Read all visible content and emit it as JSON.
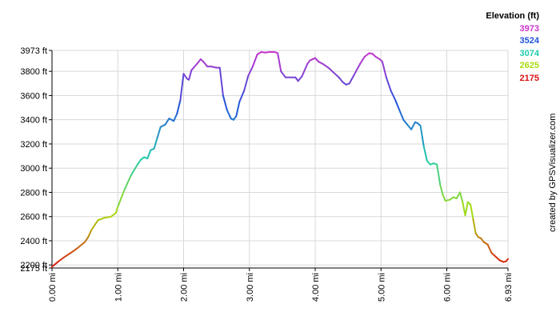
{
  "chart_data": {
    "type": "line",
    "xlabel": "",
    "ylabel": "",
    "xlim": [
      0,
      6.93
    ],
    "ylim": [
      2175,
      3973
    ],
    "x_ticks": [
      {
        "value": 0,
        "label": "0.00 mi"
      },
      {
        "value": 1,
        "label": "1.00 mi"
      },
      {
        "value": 2,
        "label": "2.00 mi"
      },
      {
        "value": 3,
        "label": "3.00 mi"
      },
      {
        "value": 4,
        "label": "4.00 mi"
      },
      {
        "value": 5,
        "label": "5.00 mi"
      },
      {
        "value": 6,
        "label": "6.00 mi"
      },
      {
        "value": 6.93,
        "label": "6.93 mi"
      }
    ],
    "y_ticks": [
      {
        "value": 2175,
        "label": "2175 ft"
      },
      {
        "value": 2200,
        "label": "2200 ft"
      },
      {
        "value": 2400,
        "label": "2400 ft"
      },
      {
        "value": 2600,
        "label": "2600 ft"
      },
      {
        "value": 2800,
        "label": "2800 ft"
      },
      {
        "value": 3000,
        "label": "3000 ft"
      },
      {
        "value": 3200,
        "label": "3200 ft"
      },
      {
        "value": 3400,
        "label": "3400 ft"
      },
      {
        "value": 3600,
        "label": "3600 ft"
      },
      {
        "value": 3800,
        "label": "3800 ft"
      },
      {
        "value": 3973,
        "label": "3973 ft"
      }
    ],
    "grid": true,
    "legend": {
      "title": "Elevation (ft)",
      "placement": "top-right",
      "entries": [
        {
          "label": "3973",
          "color": "#cc33cc"
        },
        {
          "label": "3524",
          "color": "#2255dd"
        },
        {
          "label": "3074",
          "color": "#22ccaa"
        },
        {
          "label": "2625",
          "color": "#aadd11"
        },
        {
          "label": "2175",
          "color": "#dd1111"
        }
      ]
    },
    "series": [
      {
        "points": [
          [
            0.0,
            2185
          ],
          [
            0.1,
            2230
          ],
          [
            0.2,
            2270
          ],
          [
            0.3,
            2305
          ],
          [
            0.4,
            2345
          ],
          [
            0.5,
            2390
          ],
          [
            0.55,
            2430
          ],
          [
            0.6,
            2490
          ],
          [
            0.7,
            2570
          ],
          [
            0.8,
            2590
          ],
          [
            0.9,
            2600
          ],
          [
            0.97,
            2630
          ],
          [
            1.0,
            2680
          ],
          [
            1.1,
            2820
          ],
          [
            1.2,
            2940
          ],
          [
            1.3,
            3030
          ],
          [
            1.35,
            3070
          ],
          [
            1.4,
            3090
          ],
          [
            1.45,
            3080
          ],
          [
            1.5,
            3150
          ],
          [
            1.55,
            3160
          ],
          [
            1.6,
            3250
          ],
          [
            1.65,
            3340
          ],
          [
            1.72,
            3360
          ],
          [
            1.78,
            3410
          ],
          [
            1.85,
            3390
          ],
          [
            1.9,
            3450
          ],
          [
            1.95,
            3560
          ],
          [
            2.0,
            3780
          ],
          [
            2.05,
            3740
          ],
          [
            2.08,
            3730
          ],
          [
            2.12,
            3810
          ],
          [
            2.2,
            3860
          ],
          [
            2.26,
            3900
          ],
          [
            2.3,
            3880
          ],
          [
            2.36,
            3840
          ],
          [
            2.42,
            3840
          ],
          [
            2.5,
            3830
          ],
          [
            2.55,
            3830
          ],
          [
            2.6,
            3600
          ],
          [
            2.66,
            3480
          ],
          [
            2.72,
            3410
          ],
          [
            2.76,
            3400
          ],
          [
            2.8,
            3430
          ],
          [
            2.85,
            3550
          ],
          [
            2.92,
            3640
          ],
          [
            2.98,
            3760
          ],
          [
            3.05,
            3840
          ],
          [
            3.12,
            3940
          ],
          [
            3.18,
            3960
          ],
          [
            3.24,
            3955
          ],
          [
            3.3,
            3960
          ],
          [
            3.38,
            3960
          ],
          [
            3.43,
            3950
          ],
          [
            3.48,
            3800
          ],
          [
            3.55,
            3750
          ],
          [
            3.65,
            3750
          ],
          [
            3.7,
            3750
          ],
          [
            3.74,
            3720
          ],
          [
            3.8,
            3760
          ],
          [
            3.88,
            3860
          ],
          [
            3.92,
            3890
          ],
          [
            3.96,
            3900
          ],
          [
            4.0,
            3910
          ],
          [
            4.05,
            3880
          ],
          [
            4.12,
            3860
          ],
          [
            4.2,
            3830
          ],
          [
            4.28,
            3790
          ],
          [
            4.36,
            3750
          ],
          [
            4.42,
            3710
          ],
          [
            4.47,
            3690
          ],
          [
            4.52,
            3700
          ],
          [
            4.58,
            3760
          ],
          [
            4.62,
            3800
          ],
          [
            4.68,
            3860
          ],
          [
            4.75,
            3920
          ],
          [
            4.82,
            3950
          ],
          [
            4.87,
            3945
          ],
          [
            4.92,
            3920
          ],
          [
            4.98,
            3900
          ],
          [
            5.02,
            3880
          ],
          [
            5.08,
            3750
          ],
          [
            5.15,
            3640
          ],
          [
            5.22,
            3560
          ],
          [
            5.28,
            3480
          ],
          [
            5.34,
            3400
          ],
          [
            5.4,
            3360
          ],
          [
            5.46,
            3320
          ],
          [
            5.52,
            3380
          ],
          [
            5.56,
            3370
          ],
          [
            5.6,
            3350
          ],
          [
            5.65,
            3180
          ],
          [
            5.7,
            3060
          ],
          [
            5.75,
            3030
          ],
          [
            5.8,
            3040
          ],
          [
            5.85,
            3030
          ],
          [
            5.9,
            2860
          ],
          [
            5.94,
            2780
          ],
          [
            5.98,
            2730
          ],
          [
            6.05,
            2740
          ],
          [
            6.1,
            2760
          ],
          [
            6.15,
            2750
          ],
          [
            6.2,
            2800
          ],
          [
            6.24,
            2720
          ],
          [
            6.28,
            2610
          ],
          [
            6.32,
            2720
          ],
          [
            6.36,
            2700
          ],
          [
            6.4,
            2580
          ],
          [
            6.44,
            2460
          ],
          [
            6.48,
            2430
          ],
          [
            6.52,
            2420
          ],
          [
            6.56,
            2390
          ],
          [
            6.62,
            2370
          ],
          [
            6.68,
            2300
          ],
          [
            6.74,
            2270
          ],
          [
            6.8,
            2240
          ],
          [
            6.86,
            2225
          ],
          [
            6.9,
            2230
          ],
          [
            6.93,
            2250
          ]
        ]
      }
    ]
  },
  "credit": "created by GPSVisualizer.com"
}
